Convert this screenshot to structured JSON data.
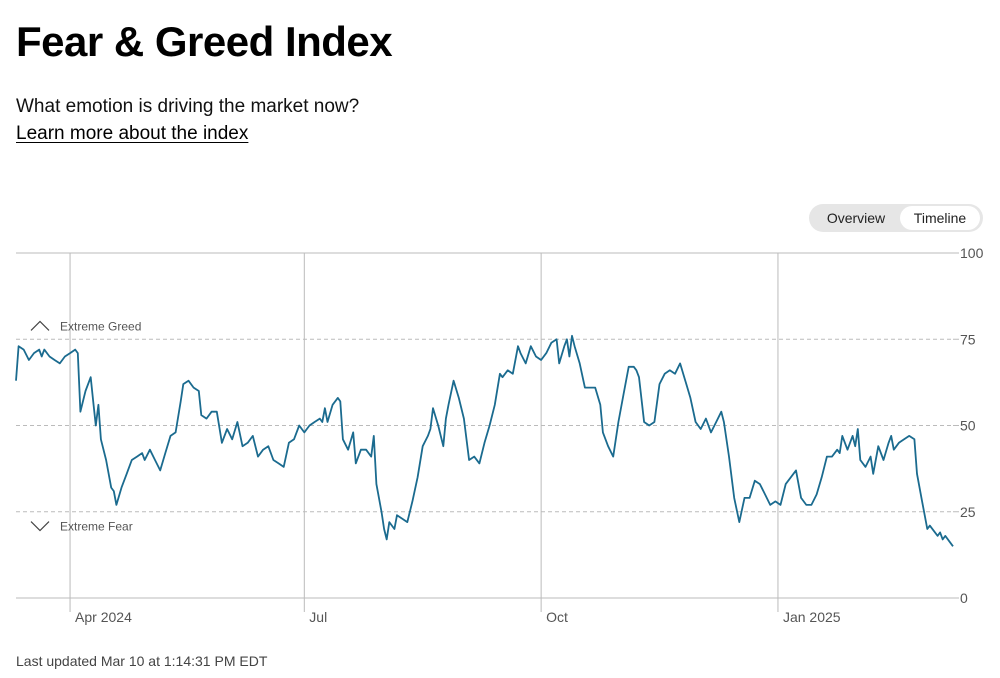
{
  "header": {
    "title": "Fear & Greed Index",
    "subtitle": "What emotion is driving the market now?",
    "learn_link": "Learn more about the index"
  },
  "toggle": {
    "overview_label": "Overview",
    "timeline_label": "Timeline",
    "selected": "Timeline"
  },
  "footer": {
    "last_updated": "Last updated Mar 10 at 1:14:31 PM EDT"
  },
  "colors": {
    "line": "#1b6b8f",
    "grid": "#bbbbbb",
    "axis_text": "#555555"
  },
  "chart_data": {
    "type": "line",
    "title": "",
    "xlabel": "",
    "ylabel": "",
    "ylim": [
      0,
      100
    ],
    "yticks": [
      0,
      25,
      50,
      75,
      100
    ],
    "xlim": [
      "2024-03-11",
      "2025-03-10"
    ],
    "xticks": [
      {
        "date": "2024-04-01",
        "label": "Apr 2024"
      },
      {
        "date": "2024-07-01",
        "label": "Jul"
      },
      {
        "date": "2024-10-01",
        "label": "Oct"
      },
      {
        "date": "2025-01-01",
        "label": "Jan 2025"
      }
    ],
    "annotations": [
      {
        "label": "Extreme Greed",
        "icon": "chevron-up-icon",
        "y": 79
      },
      {
        "label": "Extreme Fear",
        "icon": "chevron-down-icon",
        "y": 21
      }
    ],
    "grid": true,
    "series": [
      {
        "points": [
          [
            "2024-03-11",
            63
          ],
          [
            "2024-03-12",
            73
          ],
          [
            "2024-03-14",
            72
          ],
          [
            "2024-03-16",
            69
          ],
          [
            "2024-03-18",
            71
          ],
          [
            "2024-03-20",
            72
          ],
          [
            "2024-03-21",
            70
          ],
          [
            "2024-03-22",
            72
          ],
          [
            "2024-03-24",
            70
          ],
          [
            "2024-03-26",
            69
          ],
          [
            "2024-03-28",
            68
          ],
          [
            "2024-03-30",
            70
          ],
          [
            "2024-04-01",
            71
          ],
          [
            "2024-04-03",
            72
          ],
          [
            "2024-04-04",
            71
          ],
          [
            "2024-04-05",
            54
          ],
          [
            "2024-04-07",
            60
          ],
          [
            "2024-04-09",
            64
          ],
          [
            "2024-04-10",
            57
          ],
          [
            "2024-04-11",
            50
          ],
          [
            "2024-04-12",
            56
          ],
          [
            "2024-04-13",
            46
          ],
          [
            "2024-04-15",
            40
          ],
          [
            "2024-04-17",
            32
          ],
          [
            "2024-04-18",
            31
          ],
          [
            "2024-04-19",
            27
          ],
          [
            "2024-04-21",
            32
          ],
          [
            "2024-04-23",
            36
          ],
          [
            "2024-04-25",
            40
          ],
          [
            "2024-04-27",
            41
          ],
          [
            "2024-04-29",
            42
          ],
          [
            "2024-04-30",
            40
          ],
          [
            "2024-05-02",
            43
          ],
          [
            "2024-05-04",
            40
          ],
          [
            "2024-05-06",
            37
          ],
          [
            "2024-05-08",
            42
          ],
          [
            "2024-05-10",
            47
          ],
          [
            "2024-05-12",
            48
          ],
          [
            "2024-05-14",
            57
          ],
          [
            "2024-05-15",
            62
          ],
          [
            "2024-05-17",
            63
          ],
          [
            "2024-05-19",
            61
          ],
          [
            "2024-05-21",
            60
          ],
          [
            "2024-05-22",
            53
          ],
          [
            "2024-05-24",
            52
          ],
          [
            "2024-05-26",
            54
          ],
          [
            "2024-05-28",
            54
          ],
          [
            "2024-05-30",
            45
          ],
          [
            "2024-06-01",
            49
          ],
          [
            "2024-06-03",
            46
          ],
          [
            "2024-06-05",
            51
          ],
          [
            "2024-06-07",
            44
          ],
          [
            "2024-06-09",
            45
          ],
          [
            "2024-06-11",
            47
          ],
          [
            "2024-06-13",
            41
          ],
          [
            "2024-06-15",
            43
          ],
          [
            "2024-06-17",
            44
          ],
          [
            "2024-06-19",
            40
          ],
          [
            "2024-06-21",
            39
          ],
          [
            "2024-06-23",
            38
          ],
          [
            "2024-06-25",
            45
          ],
          [
            "2024-06-27",
            46
          ],
          [
            "2024-06-29",
            50
          ],
          [
            "2024-07-01",
            48
          ],
          [
            "2024-07-03",
            50
          ],
          [
            "2024-07-05",
            51
          ],
          [
            "2024-07-07",
            52
          ],
          [
            "2024-07-08",
            51
          ],
          [
            "2024-07-09",
            55
          ],
          [
            "2024-07-10",
            51
          ],
          [
            "2024-07-12",
            56
          ],
          [
            "2024-07-14",
            58
          ],
          [
            "2024-07-15",
            57
          ],
          [
            "2024-07-16",
            46
          ],
          [
            "2024-07-18",
            43
          ],
          [
            "2024-07-20",
            48
          ],
          [
            "2024-07-21",
            39
          ],
          [
            "2024-07-23",
            43
          ],
          [
            "2024-07-25",
            43
          ],
          [
            "2024-07-27",
            41
          ],
          [
            "2024-07-28",
            47
          ],
          [
            "2024-07-29",
            33
          ],
          [
            "2024-07-31",
            25
          ],
          [
            "2024-08-01",
            20
          ],
          [
            "2024-08-02",
            17
          ],
          [
            "2024-08-03",
            22
          ],
          [
            "2024-08-05",
            20
          ],
          [
            "2024-08-06",
            24
          ],
          [
            "2024-08-08",
            23
          ],
          [
            "2024-08-10",
            22
          ],
          [
            "2024-08-12",
            28
          ],
          [
            "2024-08-14",
            35
          ],
          [
            "2024-08-16",
            44
          ],
          [
            "2024-08-18",
            47
          ],
          [
            "2024-08-19",
            49
          ],
          [
            "2024-08-20",
            55
          ],
          [
            "2024-08-22",
            50
          ],
          [
            "2024-08-24",
            44
          ],
          [
            "2024-08-25",
            52
          ],
          [
            "2024-08-26",
            56
          ],
          [
            "2024-08-28",
            63
          ],
          [
            "2024-08-30",
            58
          ],
          [
            "2024-09-01",
            52
          ],
          [
            "2024-09-03",
            40
          ],
          [
            "2024-09-05",
            41
          ],
          [
            "2024-09-07",
            39
          ],
          [
            "2024-09-09",
            45
          ],
          [
            "2024-09-11",
            50
          ],
          [
            "2024-09-13",
            56
          ],
          [
            "2024-09-15",
            65
          ],
          [
            "2024-09-16",
            64
          ],
          [
            "2024-09-18",
            66
          ],
          [
            "2024-09-20",
            65
          ],
          [
            "2024-09-22",
            73
          ],
          [
            "2024-09-23",
            71
          ],
          [
            "2024-09-25",
            68
          ],
          [
            "2024-09-27",
            73
          ],
          [
            "2024-09-29",
            70
          ],
          [
            "2024-10-01",
            69
          ],
          [
            "2024-10-03",
            71
          ],
          [
            "2024-10-05",
            74
          ],
          [
            "2024-10-07",
            75
          ],
          [
            "2024-10-08",
            68
          ],
          [
            "2024-10-10",
            73
          ],
          [
            "2024-10-11",
            75
          ],
          [
            "2024-10-12",
            70
          ],
          [
            "2024-10-13",
            76
          ],
          [
            "2024-10-14",
            73
          ],
          [
            "2024-10-16",
            68
          ],
          [
            "2024-10-18",
            61
          ],
          [
            "2024-10-20",
            61
          ],
          [
            "2024-10-22",
            61
          ],
          [
            "2024-10-24",
            56
          ],
          [
            "2024-10-25",
            48
          ],
          [
            "2024-10-27",
            44
          ],
          [
            "2024-10-29",
            41
          ],
          [
            "2024-10-31",
            51
          ],
          [
            "2024-11-02",
            59
          ],
          [
            "2024-11-04",
            67
          ],
          [
            "2024-11-06",
            67
          ],
          [
            "2024-11-07",
            66
          ],
          [
            "2024-11-08",
            64
          ],
          [
            "2024-11-10",
            51
          ],
          [
            "2024-11-12",
            50
          ],
          [
            "2024-11-14",
            51
          ],
          [
            "2024-11-16",
            62
          ],
          [
            "2024-11-18",
            65
          ],
          [
            "2024-11-20",
            66
          ],
          [
            "2024-11-22",
            65
          ],
          [
            "2024-11-24",
            68
          ],
          [
            "2024-11-26",
            63
          ],
          [
            "2024-11-28",
            58
          ],
          [
            "2024-11-30",
            51
          ],
          [
            "2024-12-02",
            49
          ],
          [
            "2024-12-04",
            52
          ],
          [
            "2024-12-06",
            48
          ],
          [
            "2024-12-08",
            51
          ],
          [
            "2024-12-10",
            54
          ],
          [
            "2024-12-11",
            51
          ],
          [
            "2024-12-13",
            41
          ],
          [
            "2024-12-15",
            29
          ],
          [
            "2024-12-17",
            22
          ],
          [
            "2024-12-19",
            29
          ],
          [
            "2024-12-21",
            29
          ],
          [
            "2024-12-23",
            34
          ],
          [
            "2024-12-25",
            33
          ],
          [
            "2024-12-27",
            30
          ],
          [
            "2024-12-29",
            27
          ],
          [
            "2024-12-31",
            28
          ],
          [
            "2025-01-02",
            27
          ],
          [
            "2025-01-04",
            33
          ],
          [
            "2025-01-06",
            35
          ],
          [
            "2025-01-08",
            37
          ],
          [
            "2025-01-10",
            29
          ],
          [
            "2025-01-12",
            27
          ],
          [
            "2025-01-14",
            27
          ],
          [
            "2025-01-16",
            30
          ],
          [
            "2025-01-18",
            35
          ],
          [
            "2025-01-20",
            41
          ],
          [
            "2025-01-22",
            41
          ],
          [
            "2025-01-24",
            43
          ],
          [
            "2025-01-25",
            42
          ],
          [
            "2025-01-26",
            47
          ],
          [
            "2025-01-28",
            43
          ],
          [
            "2025-01-30",
            47
          ],
          [
            "2025-01-31",
            44
          ],
          [
            "2025-02-01",
            49
          ],
          [
            "2025-02-02",
            40
          ],
          [
            "2025-02-04",
            38
          ],
          [
            "2025-02-06",
            41
          ],
          [
            "2025-02-07",
            36
          ],
          [
            "2025-02-09",
            44
          ],
          [
            "2025-02-11",
            40
          ],
          [
            "2025-02-13",
            45
          ],
          [
            "2025-02-14",
            47
          ],
          [
            "2025-02-15",
            43
          ],
          [
            "2025-02-17",
            45
          ],
          [
            "2025-02-19",
            46
          ],
          [
            "2025-02-21",
            47
          ],
          [
            "2025-02-23",
            46
          ],
          [
            "2025-02-24",
            36
          ],
          [
            "2025-02-26",
            28
          ],
          [
            "2025-02-27",
            24
          ],
          [
            "2025-02-28",
            20
          ],
          [
            "2025-03-01",
            21
          ],
          [
            "2025-03-03",
            19
          ],
          [
            "2025-03-04",
            18
          ],
          [
            "2025-03-05",
            19
          ],
          [
            "2025-03-06",
            17
          ],
          [
            "2025-03-07",
            18
          ],
          [
            "2025-03-09",
            16
          ],
          [
            "2025-03-10",
            15
          ]
        ]
      }
    ]
  }
}
